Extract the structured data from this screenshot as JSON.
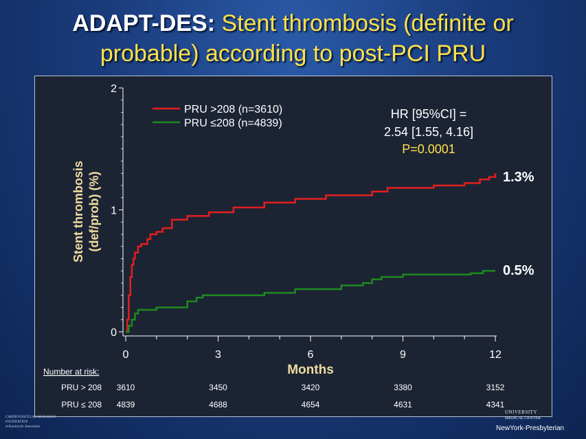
{
  "title": {
    "prefix": "ADAPT-DES:",
    "line1": "Stent thrombosis (definite or",
    "line2": "probable) according to post-PCI PRU"
  },
  "colors": {
    "red": "#e41e1e",
    "green": "#1e8a1e",
    "yellow": "#ffe14a",
    "cream": "#f0dca0"
  },
  "chart_data": {
    "type": "line",
    "xlabel": "Months",
    "ylabel_line1": "Stent thrombosis",
    "ylabel_line2": "(def/prob) (%)",
    "xlim": [
      0,
      12
    ],
    "ylim": [
      0,
      2
    ],
    "x_ticks": [
      0,
      3,
      6,
      9,
      12
    ],
    "y_ticks": [
      0,
      1,
      2
    ],
    "series": [
      {
        "name": "PRU >208 (n=3610)",
        "color": "#e41e1e",
        "end_label": "1.3%",
        "x": [
          0,
          0.05,
          0.1,
          0.15,
          0.2,
          0.25,
          0.3,
          0.4,
          0.5,
          0.7,
          0.8,
          1.0,
          1.2,
          1.5,
          2.0,
          2.7,
          3.5,
          4.5,
          5.5,
          6.5,
          8.0,
          8.5,
          10.0,
          11.0,
          11.5,
          11.8,
          12.0
        ],
        "y": [
          0,
          0.1,
          0.3,
          0.45,
          0.55,
          0.6,
          0.65,
          0.7,
          0.72,
          0.76,
          0.8,
          0.82,
          0.85,
          0.92,
          0.95,
          0.98,
          1.02,
          1.06,
          1.09,
          1.12,
          1.15,
          1.18,
          1.2,
          1.22,
          1.25,
          1.27,
          1.3
        ]
      },
      {
        "name": "PRU ≤208 (n=4839)",
        "color": "#1e8a1e",
        "end_label": "0.5%",
        "x": [
          0,
          0.1,
          0.2,
          0.3,
          0.4,
          1.0,
          2.0,
          2.3,
          2.5,
          4.5,
          5.5,
          7.0,
          7.7,
          8.0,
          8.3,
          9.0,
          10.5,
          11.2,
          11.6,
          12.0
        ],
        "y": [
          0,
          0.05,
          0.1,
          0.15,
          0.18,
          0.2,
          0.25,
          0.28,
          0.3,
          0.32,
          0.35,
          0.38,
          0.4,
          0.43,
          0.45,
          0.47,
          0.47,
          0.48,
          0.5,
          0.5
        ]
      }
    ],
    "annotation": {
      "line1": "HR [95%CI] =",
      "line2": "2.54 [1.55, 4.16]",
      "line3": "P=0.0001"
    },
    "risk_table": {
      "title": "Number at risk:",
      "times": [
        0,
        3,
        6,
        9,
        12
      ],
      "rows": [
        {
          "label": "PRU > 208",
          "values": [
            "3610",
            "3450",
            "3420",
            "3380",
            "3152"
          ]
        },
        {
          "label": "PRU ≤ 208",
          "values": [
            "4839",
            "4688",
            "4654",
            "4631",
            "4341"
          ]
        }
      ]
    }
  },
  "footer": {
    "left_line1": "CARDIOVASCULAR RESEARCH",
    "left_line2": "FOUNDATION",
    "left_line3": "A Passion for Innovation",
    "right_top": "UNIVERSITY",
    "right_mid": "MEDICAL CENTER",
    "right_bot": "NewYork-Presbyterian"
  }
}
